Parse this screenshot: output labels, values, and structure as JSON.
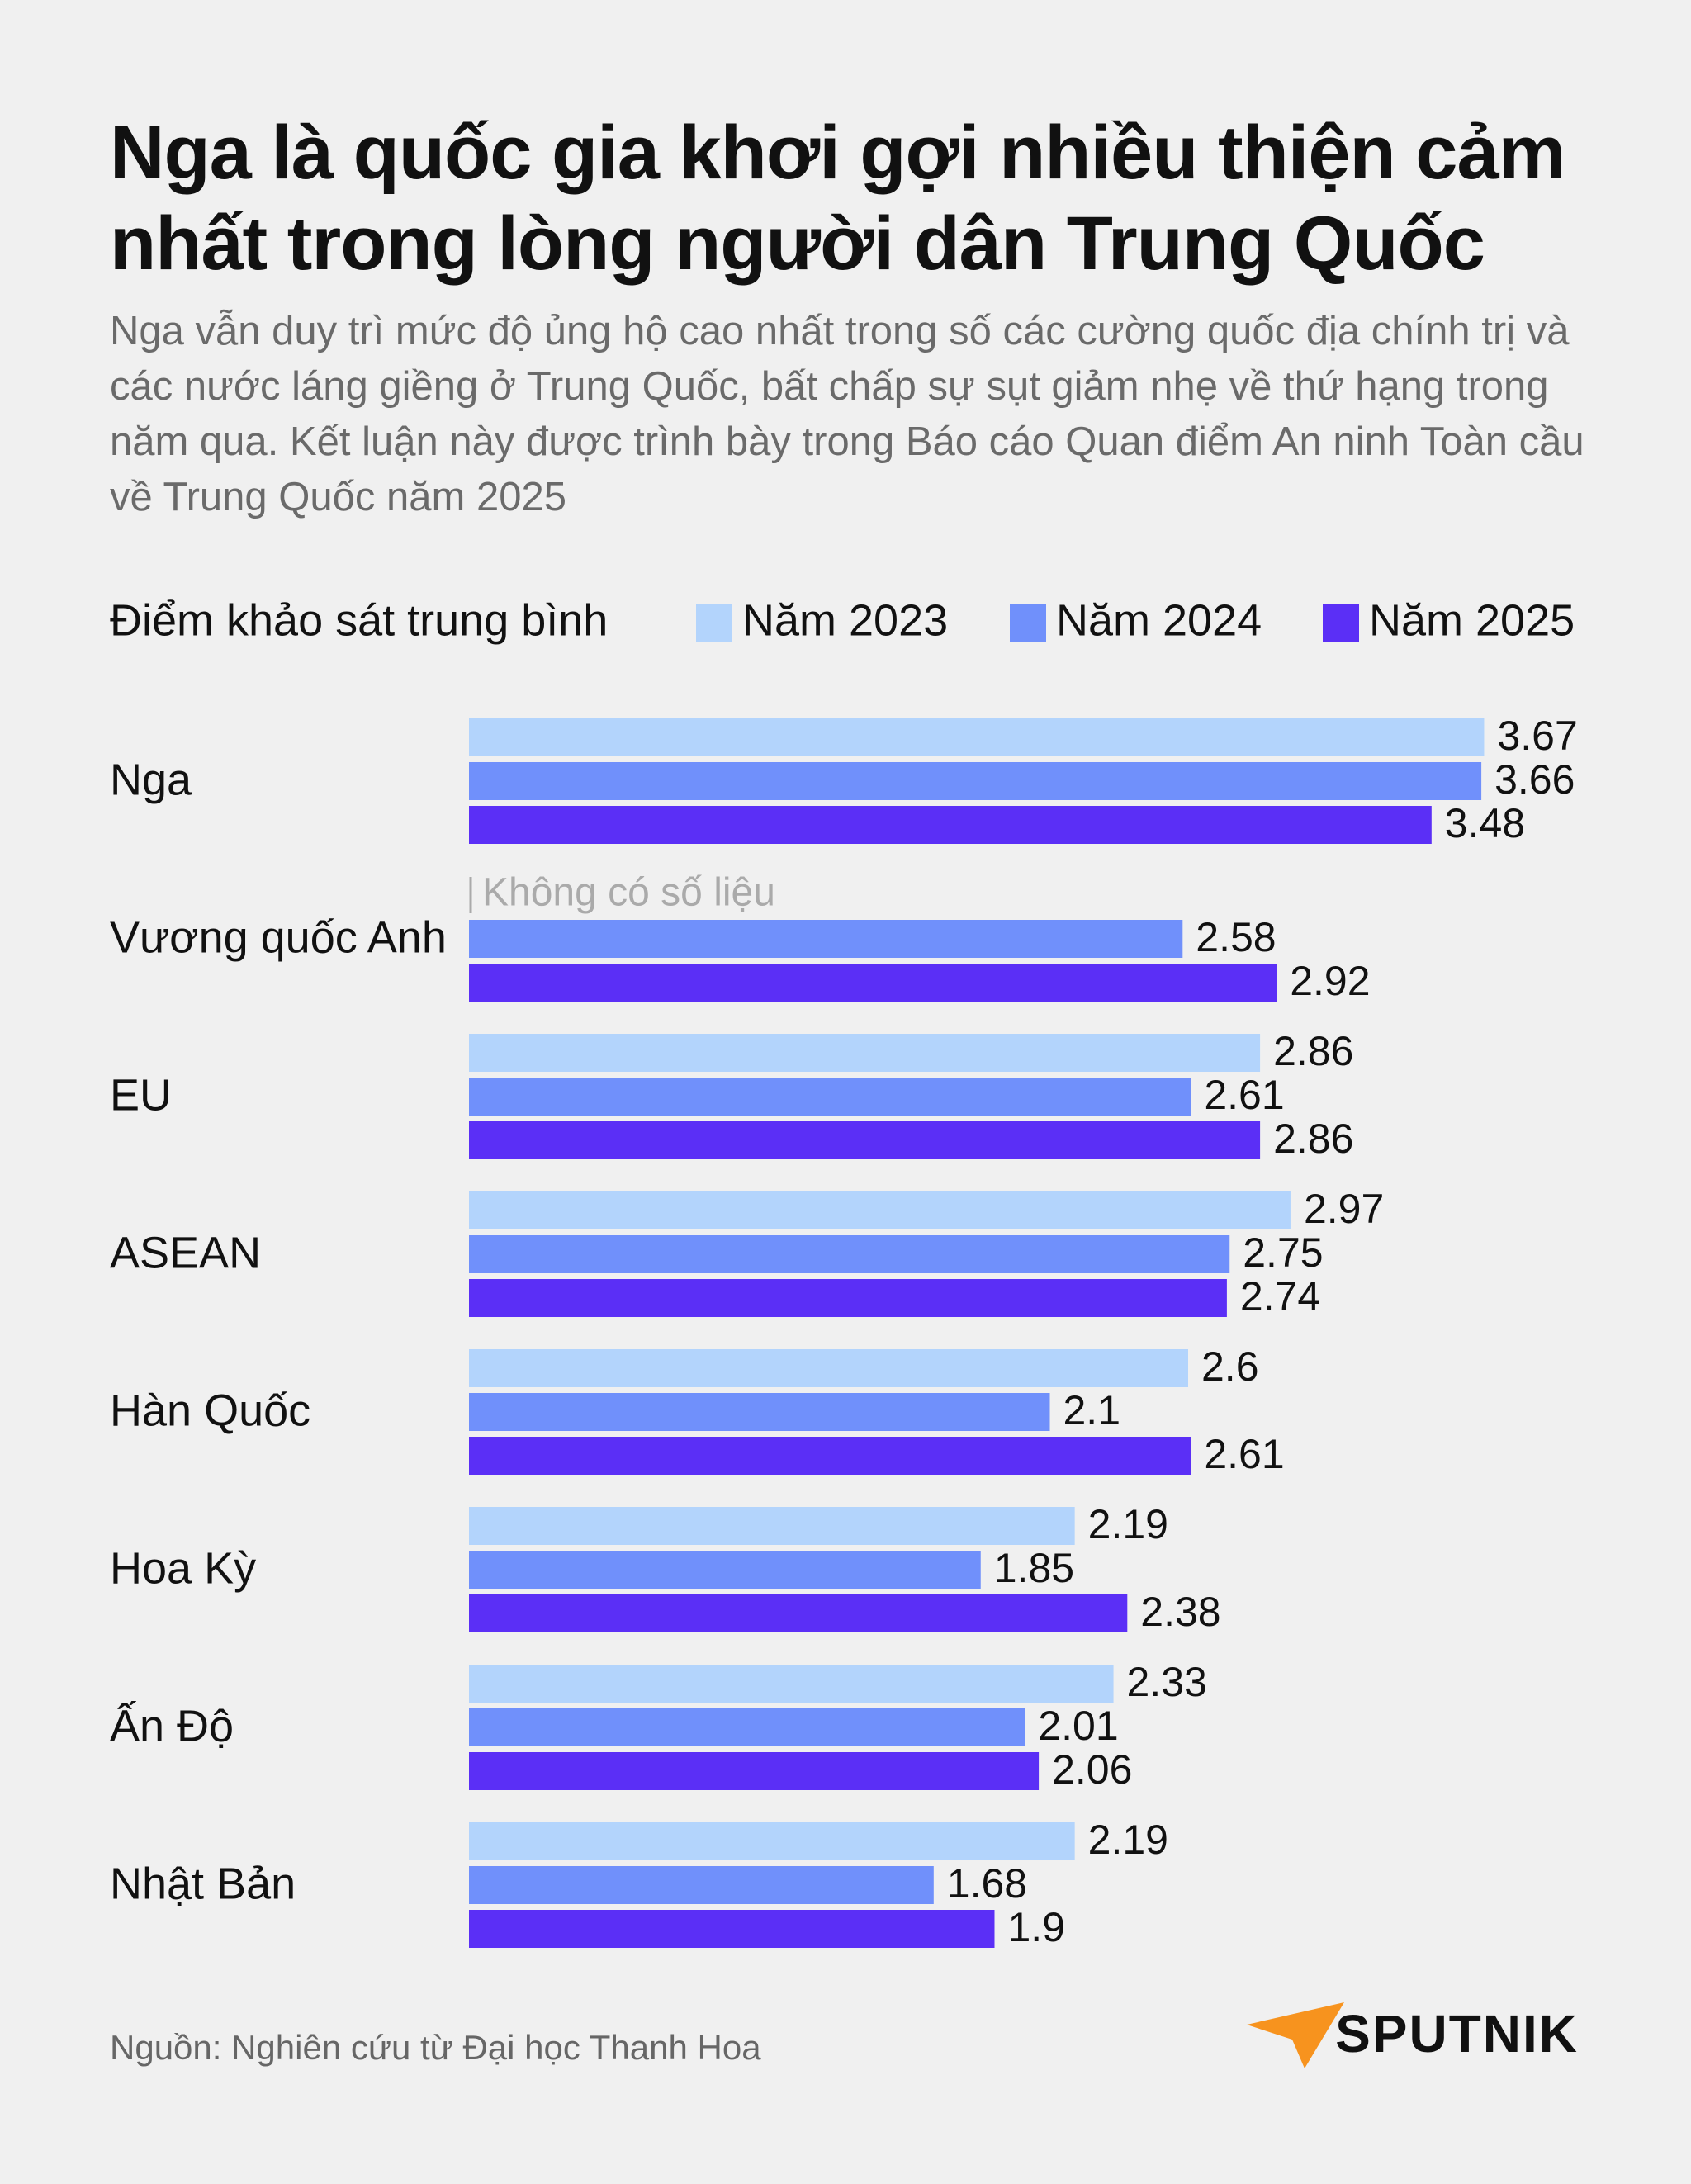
{
  "chart_data": {
    "type": "hbar",
    "title": "Nga là quốc gia khơi gợi nhiều thiện cảm nhất trong lòng người dân Trung Quốc",
    "subtitle": "Nga vẫn duy trì mức độ ủng hộ cao nhất trong số các cường quốc địa chính trị và các nước láng giềng ở Trung Quốc, bất chấp sự sụt giảm nhẹ về thứ hạng trong năm qua. Kết luận này được trình bày trong Báo cáo Quan điểm An ninh Toàn cầu về Trung Quốc năm 2025",
    "xlabel": "Điểm khảo sát trung bình",
    "categories": [
      "Nga",
      "Vương quốc Anh",
      "EU",
      "ASEAN",
      "Hàn Quốc",
      "Hoa Kỳ",
      "Ấn Độ",
      "Nhật Bản"
    ],
    "series": [
      {
        "name": "Năm 2023",
        "color": "#b3d4fc",
        "values": [
          3.67,
          null,
          2.86,
          2.97,
          2.6,
          2.19,
          2.33,
          2.19
        ]
      },
      {
        "name": "Năm 2024",
        "color": "#7090fb",
        "values": [
          3.66,
          2.58,
          2.61,
          2.75,
          2.1,
          1.85,
          2.01,
          1.68
        ]
      },
      {
        "name": "Năm 2025",
        "color": "#5b2ff6",
        "values": [
          3.48,
          2.92,
          2.86,
          2.74,
          2.61,
          2.38,
          2.06,
          1.9
        ]
      }
    ],
    "annotation": "Không có số liệu",
    "xlim": [
      0,
      4
    ],
    "source": "Nguồn: Nghiên cứu từ Đại học Thanh Hoa",
    "logo": "SPUTNIK"
  }
}
